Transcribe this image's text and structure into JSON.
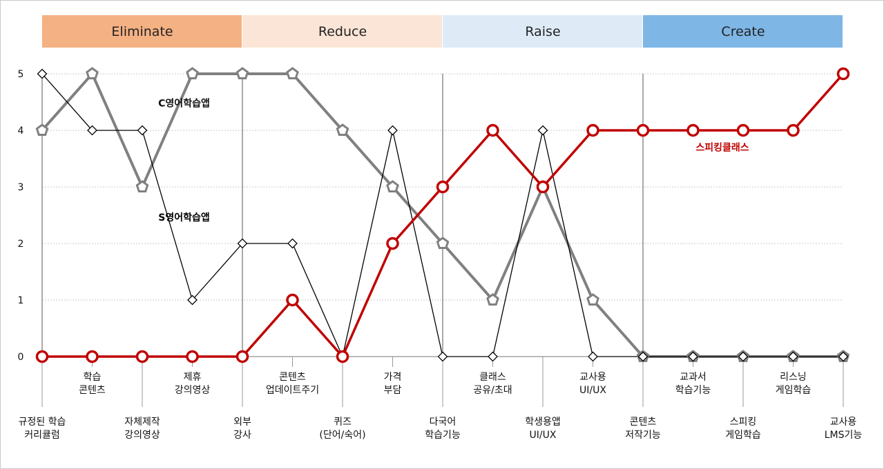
{
  "chart_data": {
    "type": "line",
    "ylim": [
      0,
      5
    ],
    "yticks": [
      "0",
      "1",
      "2",
      "3",
      "4",
      "5"
    ],
    "grid": true,
    "bands": [
      {
        "label": "Eliminate",
        "color": "#f4b183",
        "start": 0,
        "end": 4
      },
      {
        "label": "Reduce",
        "color": "#fbe5d6",
        "start": 4,
        "end": 8
      },
      {
        "label": "Raise",
        "color": "#deebf7",
        "start": 8,
        "end": 12
      },
      {
        "label": "Create",
        "color": "#7eb6e6",
        "start": 12,
        "end": 16
      }
    ],
    "categories": [
      [
        "규정된 학습",
        "커리큘럼"
      ],
      [
        "학습",
        "콘텐츠"
      ],
      [
        "자체제작",
        "강의영상"
      ],
      [
        "제휴",
        "강의영상"
      ],
      [
        "외부",
        "강사"
      ],
      [
        "콘텐츠",
        "업데이트주기"
      ],
      [
        "퀴즈",
        "(단어/숙어)"
      ],
      [
        "가격",
        "부담"
      ],
      [
        "다국어",
        "학습기능"
      ],
      [
        "클래스",
        "공유/초대"
      ],
      [
        "학생용앱",
        "UI/UX"
      ],
      [
        "교사용",
        "UI/UX"
      ],
      [
        "콘텐츠",
        "저작기능"
      ],
      [
        "교과서",
        "학습기능"
      ],
      [
        "스피킹",
        "게임학습"
      ],
      [
        "리스닝",
        "게임학습"
      ],
      [
        "교사용",
        "LMS기능"
      ]
    ],
    "series": [
      {
        "name": "S영어학습앱",
        "color": "#000000",
        "marker": "diamond",
        "values": [
          5,
          4,
          4,
          1,
          2,
          2,
          0,
          4,
          0,
          0,
          4,
          0,
          0,
          0,
          0,
          0,
          0
        ]
      },
      {
        "name": "C영어학습앱",
        "color": "#808080",
        "marker": "pentagon",
        "values": [
          4,
          5,
          3,
          5,
          5,
          5,
          4,
          3,
          2,
          1,
          3,
          1,
          0,
          0,
          0,
          0,
          0
        ]
      },
      {
        "name": "스피킹클래스",
        "color": "#c00000",
        "marker": "circle",
        "values": [
          0,
          0,
          0,
          0,
          0,
          1,
          0,
          2,
          3,
          4,
          3,
          4,
          4,
          4,
          4,
          4,
          5
        ]
      }
    ]
  }
}
